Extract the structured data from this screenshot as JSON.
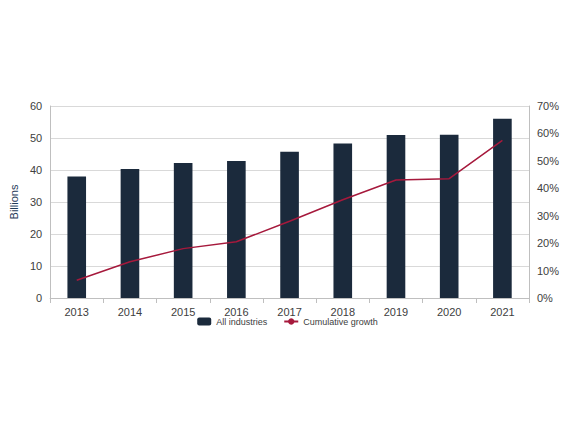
{
  "chart_data": {
    "type": "bar",
    "ylabel": "Billions",
    "categories": [
      "2013",
      "2014",
      "2015",
      "2016",
      "2017",
      "2018",
      "2019",
      "2020",
      "2021"
    ],
    "series": [
      {
        "name": "All industries",
        "type": "bar",
        "color": "#1b2a3c",
        "values": [
          38,
          40.3,
          42.2,
          42.8,
          45.7,
          48.3,
          50.9,
          51,
          56
        ]
      },
      {
        "name": "Cumulative growth",
        "type": "line",
        "axis": "y2",
        "color": "#a6193c",
        "marker": "none",
        "values": [
          6.5,
          13.2,
          18,
          20.5,
          28,
          35.8,
          43,
          43.5,
          57.5
        ]
      }
    ],
    "ylim": [
      0,
      60
    ],
    "yticks": [
      0,
      10,
      20,
      30,
      40,
      50,
      60
    ],
    "y2lim": [
      0,
      70
    ],
    "y2ticks": [
      {
        "value": 0,
        "label": "0%"
      },
      {
        "value": 10,
        "label": "10%"
      },
      {
        "value": 20,
        "label": "20%"
      },
      {
        "value": 30,
        "label": "30%"
      },
      {
        "value": 40,
        "label": "40%"
      },
      {
        "value": 50,
        "label": "50%"
      },
      {
        "value": 60,
        "label": "60%"
      },
      {
        "value": 70,
        "label": "70%"
      }
    ],
    "grid": true,
    "legend": "bottom"
  }
}
